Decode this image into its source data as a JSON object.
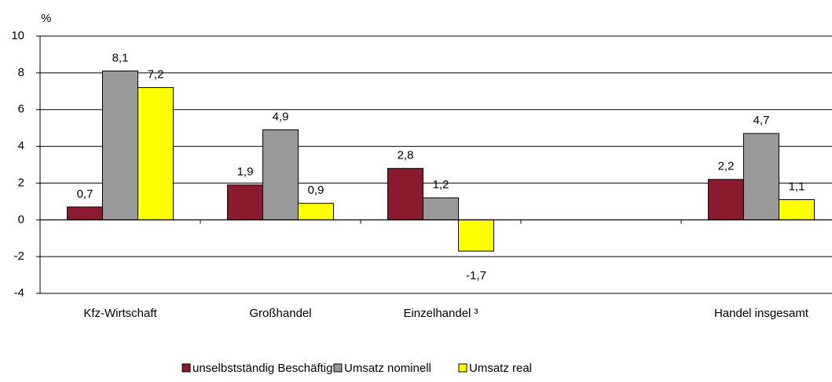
{
  "chart_data": {
    "type": "bar",
    "y_axis_label": "%",
    "categories": [
      "Kfz-Wirtschaft",
      "Großhandel",
      "Einzelhandel ³",
      null,
      "Handel  insgesamt"
    ],
    "series": [
      {
        "name": "unselbstständig Beschäftigte",
        "color": "#8b1a2e",
        "values": [
          0.7,
          1.9,
          2.8,
          null,
          2.2
        ],
        "value_labels": [
          "0,7",
          "1,9",
          "2,8",
          null,
          "2,2"
        ]
      },
      {
        "name": "Umsatz nominell",
        "color": "#999999",
        "values": [
          8.1,
          4.9,
          1.2,
          null,
          4.7
        ],
        "value_labels": [
          "8,1",
          "4,9",
          "1,2",
          null,
          "4,7"
        ]
      },
      {
        "name": "Umsatz real",
        "color": "#ffff00",
        "values": [
          7.2,
          0.9,
          -1.7,
          null,
          1.1
        ],
        "value_labels": [
          "7,2",
          "0,9",
          "-1,7",
          null,
          "1,1"
        ]
      }
    ],
    "ylim": [
      -4,
      10
    ],
    "yticks": [
      -4,
      -2,
      0,
      2,
      4,
      6,
      8,
      10
    ],
    "grid": true,
    "legend": "bottom"
  }
}
